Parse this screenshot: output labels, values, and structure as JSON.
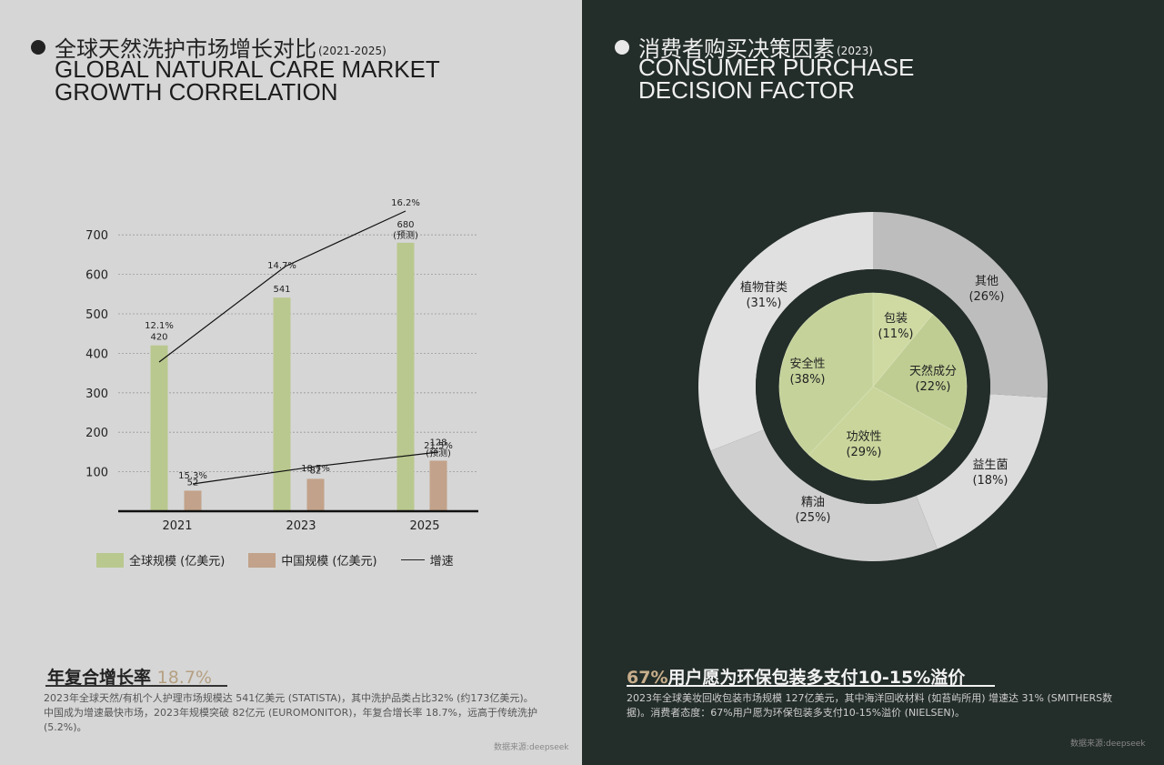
{
  "left": {
    "title_zh": "全球天然洗护市场增长对比",
    "title_year": "(2021-2025)",
    "title_en_line1": "GLOBAL NATURAL CARE MARKET",
    "title_en_line2": "GROWTH CORRELATION",
    "legend": {
      "global": "全球规模 (亿美元)",
      "china": "中国规模 (亿美元)",
      "growth": "增速"
    },
    "headline_main": "年复合增长率 ",
    "headline_accent": "18.7%",
    "description": "2023年全球天然/有机个人护理市场规模达 541亿美元 (STATISTA)，其中洗护品类占比32% (约173亿美元)。中国成为增速最快市场，2023年规模突破 82亿元 (EUROMONITOR)，年复合增长率 18.7%，远高于传统洗护 (5.2%)。",
    "source": "数据来源:deepseek"
  },
  "right": {
    "title_zh": "消费者购买决策因素",
    "title_year": "(2023)",
    "title_en_line1": "CONSUMER PURCHASE",
    "title_en_line2": "DECISION FACTOR",
    "headline_accent": "67%",
    "headline_main": "用户愿为环保包装多支付10-15%溢价",
    "description": "2023年全球美妆回收包装市场规模 127亿美元，其中海洋回收材料 (如苔屿所用) 增速达 31% (SMITHERS数据)。消费者态度：67%用户愿为环保包装多支付10-15%溢价 (NIELSEN)。",
    "source": "数据来源:deepseek"
  },
  "colors": {
    "global_bar": "#b9c88e",
    "china_bar": "#c2a28a",
    "inner_pie": "#c5d39a",
    "outer_light": "#e0e0e0",
    "outer_mid": "#bdbdbd"
  },
  "chart_data": [
    {
      "type": "bar",
      "categories": [
        "2021",
        "2023",
        "2025"
      ],
      "ylim": [
        0,
        700
      ],
      "yticks": [
        100,
        200,
        300,
        400,
        500,
        600,
        700
      ],
      "series": [
        {
          "name": "全球规模 (亿美元)",
          "values": [
            420,
            541,
            680
          ],
          "labels": [
            "420",
            "541",
            "680"
          ],
          "notes": [
            "",
            "",
            "(预测)"
          ]
        },
        {
          "name": "中国规模 (亿美元)",
          "values": [
            52,
            82,
            128
          ],
          "labels": [
            "52",
            "82",
            "128"
          ],
          "notes": [
            "",
            "",
            "(预测)"
          ]
        }
      ],
      "growth_lines": [
        {
          "series": "全球规模 (亿美元)",
          "values": [
            12.1,
            14.7,
            16.2
          ],
          "labels": [
            "12.1%",
            "14.7%",
            "16.2%"
          ]
        },
        {
          "series": "中国规模 (亿美元)",
          "values": [
            15.3,
            18.7,
            21.5
          ],
          "labels": [
            "15.3%",
            "18.7%",
            "21.5%"
          ]
        }
      ]
    },
    {
      "type": "pie",
      "rings": [
        {
          "name": "outer",
          "slices": [
            {
              "label": "其他",
              "value": 26,
              "pct": "(26%)"
            },
            {
              "label": "益生菌",
              "value": 18,
              "pct": "(18%)"
            },
            {
              "label": "精油",
              "value": 25,
              "pct": "(25%)"
            },
            {
              "label": "植物苷类",
              "value": 31,
              "pct": "(31%)"
            }
          ]
        },
        {
          "name": "inner",
          "slices": [
            {
              "label": "包装",
              "value": 11,
              "pct": "(11%)"
            },
            {
              "label": "天然成分",
              "value": 22,
              "pct": "(22%)"
            },
            {
              "label": "功效性",
              "value": 29,
              "pct": "(29%)"
            },
            {
              "label": "安全性",
              "value": 38,
              "pct": "(38%)"
            }
          ]
        }
      ]
    }
  ]
}
